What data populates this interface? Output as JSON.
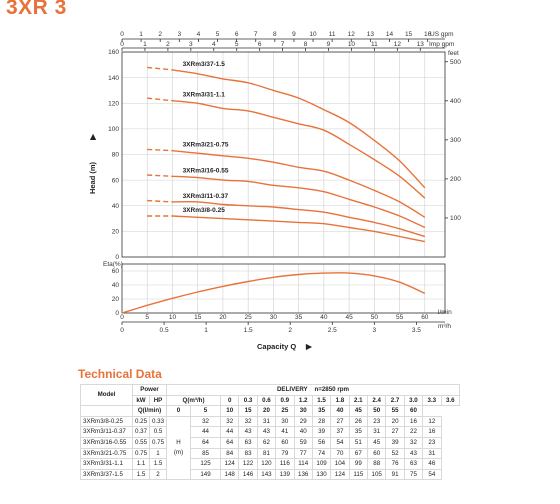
{
  "title": "3XR 3",
  "chart_data": [
    {
      "type": "line",
      "name": "performance",
      "xlabel_bottom": "Capacity Q",
      "ylabel_left": "Head (m)",
      "top_unit_usgpm": "US gpm",
      "top_unit_impgpm": "Imp gpm",
      "right_unit": "feet",
      "x_ticks_usgpm": [
        "0",
        "1",
        "2",
        "3",
        "4",
        "5",
        "6",
        "7",
        "8",
        "9",
        "10",
        "11",
        "12",
        "13",
        "14",
        "15",
        "16"
      ],
      "x_ticks_impgpm": [
        "0",
        "1",
        "2",
        "3",
        "4",
        "5",
        "6",
        "7",
        "8",
        "9",
        "10",
        "11",
        "12",
        "13"
      ],
      "y_ticks_m": [
        "0",
        "20",
        "40",
        "60",
        "80",
        "100",
        "120",
        "140",
        "160"
      ],
      "y_ticks_feet": [
        "100",
        "200",
        "300",
        "400",
        "500"
      ],
      "xlim_lmin": [
        0,
        64
      ],
      "ylim": [
        0,
        160
      ],
      "series": [
        {
          "name": "3XRm3/37-1.5",
          "x": [
            0,
            5,
            10,
            15,
            20,
            25,
            30,
            35,
            40,
            45,
            50,
            55,
            60
          ],
          "y": [
            149,
            148,
            146,
            143,
            139,
            136,
            130,
            124,
            115,
            105,
            91,
            75,
            54
          ],
          "dashed_until": 10
        },
        {
          "name": "3XRm3/31-1.1",
          "x": [
            0,
            5,
            10,
            15,
            20,
            25,
            30,
            35,
            40,
            45,
            50,
            55,
            60
          ],
          "y": [
            125,
            124,
            122,
            120,
            116,
            114,
            109,
            104,
            99,
            88,
            76,
            63,
            46
          ],
          "dashed_until": 10
        },
        {
          "name": "3XRm3/21-0.75",
          "x": [
            0,
            5,
            10,
            15,
            20,
            25,
            30,
            35,
            40,
            45,
            50,
            55,
            60
          ],
          "y": [
            85,
            84,
            83,
            81,
            79,
            77,
            74,
            70,
            67,
            60,
            52,
            43,
            31
          ],
          "dashed_until": 10
        },
        {
          "name": "3XRm3/16-0.55",
          "x": [
            0,
            5,
            10,
            15,
            20,
            25,
            30,
            35,
            40,
            45,
            50,
            55,
            60
          ],
          "y": [
            64,
            64,
            63,
            62,
            60,
            59,
            56,
            54,
            51,
            45,
            39,
            32,
            23
          ],
          "dashed_until": 10
        },
        {
          "name": "3XRm3/11-0.37",
          "x": [
            0,
            5,
            10,
            15,
            20,
            25,
            30,
            35,
            40,
            45,
            50,
            55,
            60
          ],
          "y": [
            44,
            44,
            43,
            43,
            41,
            40,
            39,
            37,
            35,
            31,
            27,
            22,
            16
          ],
          "dashed_until": 10
        },
        {
          "name": "3XRm3/8-0.25",
          "x": [
            0,
            5,
            10,
            15,
            20,
            25,
            30,
            35,
            40,
            45,
            50,
            55,
            60
          ],
          "y": [
            32,
            32,
            32,
            31,
            30,
            29,
            28,
            27,
            26,
            23,
            20,
            16,
            12
          ],
          "dashed_until": 10
        }
      ]
    },
    {
      "type": "line",
      "name": "efficiency",
      "ylabel_left": "Eta(%)",
      "unit_lmin": "l/min",
      "unit_m3h": "m³/h",
      "y_ticks": [
        "0",
        "20",
        "40",
        "60"
      ],
      "ylim": [
        0,
        70
      ],
      "x_ticks_lmin": [
        "0",
        "5",
        "10",
        "15",
        "20",
        "25",
        "30",
        "35",
        "40",
        "45",
        "50",
        "55",
        "60"
      ],
      "x_ticks_m3h": [
        "0",
        "0.5",
        "1",
        "1.5",
        "2",
        "2.5",
        "3",
        "3.5"
      ],
      "series": [
        {
          "name": "eta",
          "x": [
            0,
            5,
            10,
            15,
            20,
            25,
            30,
            35,
            40,
            45,
            50,
            55,
            60
          ],
          "y": [
            0,
            11,
            21,
            30,
            38,
            45,
            51,
            55,
            57,
            57,
            53,
            44,
            28
          ]
        }
      ]
    }
  ],
  "tech": {
    "title": "Technical Data",
    "header": {
      "model": "Model",
      "power": "Power",
      "kw": "kW",
      "hp": "HP",
      "delivery": "DELIVERY",
      "rpm": "n=2850 rpm",
      "q_m3h": "Q(m³/h)",
      "q_lmin": "Q(l/min)",
      "h_label": "H",
      "h_unit": "(m)"
    },
    "q_m3h_values": [
      "0",
      "0.3",
      "0.6",
      "0.9",
      "1.2",
      "1.5",
      "1.8",
      "2.1",
      "2.4",
      "2.7",
      "3.0",
      "3.3",
      "3.6"
    ],
    "q_lmin_values": [
      "0",
      "5",
      "10",
      "15",
      "20",
      "25",
      "30",
      "35",
      "40",
      "45",
      "50",
      "55",
      "60"
    ],
    "rows": [
      {
        "model": "3XRm3/8-0.25",
        "kw": "0.25",
        "hp": "0.33",
        "h": [
          "32",
          "32",
          "32",
          "31",
          "30",
          "29",
          "28",
          "27",
          "26",
          "23",
          "20",
          "16",
          "12"
        ]
      },
      {
        "model": "3XRm3/11-0.37",
        "kw": "0.37",
        "hp": "0.5",
        "h": [
          "44",
          "44",
          "43",
          "43",
          "41",
          "40",
          "39",
          "37",
          "35",
          "31",
          "27",
          "22",
          "16"
        ]
      },
      {
        "model": "3XRm3/16-0.55",
        "kw": "0.55",
        "hp": "0.75",
        "h": [
          "64",
          "64",
          "63",
          "62",
          "60",
          "59",
          "56",
          "54",
          "51",
          "45",
          "39",
          "32",
          "23"
        ]
      },
      {
        "model": "3XRm3/21-0.75",
        "kw": "0.75",
        "hp": "1",
        "h": [
          "85",
          "84",
          "83",
          "81",
          "79",
          "77",
          "74",
          "70",
          "67",
          "60",
          "52",
          "43",
          "31"
        ]
      },
      {
        "model": "3XRm3/31-1.1",
        "kw": "1.1",
        "hp": "1.5",
        "h": [
          "125",
          "124",
          "122",
          "120",
          "116",
          "114",
          "109",
          "104",
          "99",
          "88",
          "76",
          "63",
          "46"
        ]
      },
      {
        "model": "3XRm3/37-1.5",
        "kw": "1.5",
        "hp": "2",
        "h": [
          "149",
          "148",
          "146",
          "143",
          "139",
          "136",
          "130",
          "124",
          "115",
          "105",
          "91",
          "75",
          "54"
        ]
      }
    ]
  },
  "colors": {
    "accent": "#e8733a",
    "grid": "#cfcfcf"
  }
}
